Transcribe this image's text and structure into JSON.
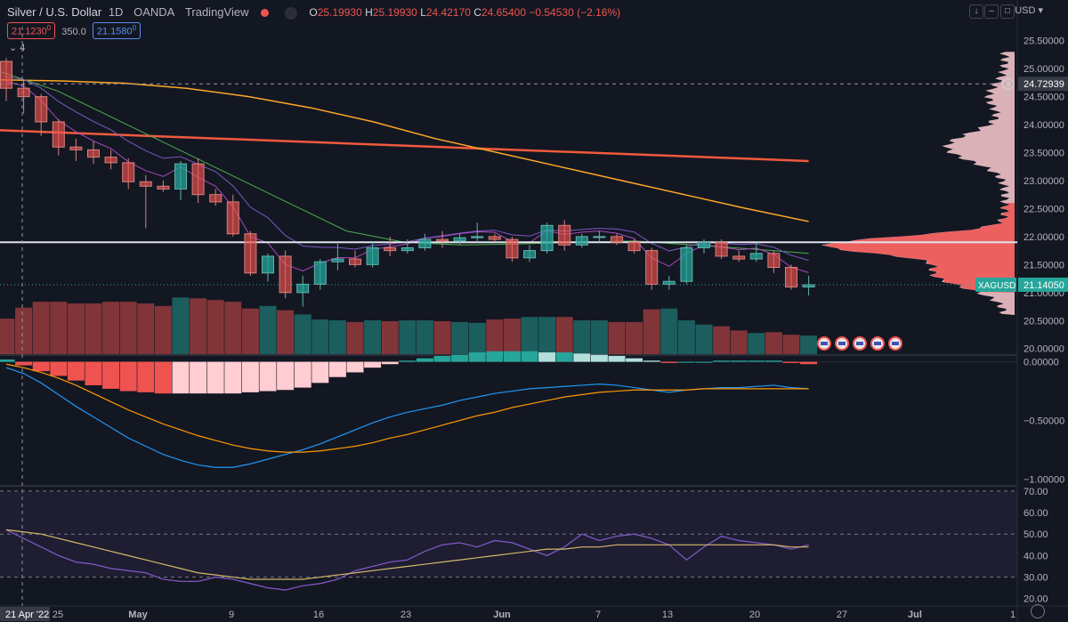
{
  "header": {
    "symbol": "Silver / U.S. Dollar",
    "interval": "1D",
    "broker": "OANDA",
    "platform": "TradingView",
    "o_label": "O",
    "o": "25.19930",
    "h_label": "H",
    "h": "25.19930",
    "l_label": "L",
    "l": "24.42170",
    "c_label": "C",
    "c": "24.65400",
    "change": "−0.54530 (−2.16%)",
    "bid": "21.1230",
    "bid_sup": "0",
    "spread": "350.0",
    "ask": "21.1580",
    "ask_sup": "0",
    "collapse": "4",
    "currency": "USD",
    "colors": {
      "up": "#26a69a",
      "down": "#ef5350",
      "bg": "#131722"
    }
  },
  "chart_data": {
    "type": "candlestick",
    "title": "Silver / U.S. Dollar, 1D, OANDA",
    "symbol_tag": "XAGUSD",
    "last_price": "21.14050",
    "crosshair_price": "24.72939",
    "crosshair_date": "21 Apr '22",
    "x_ticks": [
      "25",
      "May",
      "9",
      "16",
      "23",
      "Jun",
      "7",
      "13",
      "20",
      "27",
      "Jul",
      "1"
    ],
    "price_axis": [
      "25.50000",
      "25.00000",
      "24.50000",
      "24.00000",
      "23.50000",
      "23.00000",
      "22.50000",
      "22.00000",
      "21.50000",
      "21.00000",
      "20.50000",
      "20.00000"
    ],
    "price_range": [
      19.9,
      25.75
    ],
    "horizontal_line": 21.9,
    "candles": [
      {
        "o": 25.13,
        "h": 25.19,
        "l": 24.42,
        "c": 24.65
      },
      {
        "o": 24.65,
        "h": 24.8,
        "l": 24.2,
        "c": 24.5
      },
      {
        "o": 24.5,
        "h": 24.55,
        "l": 23.8,
        "c": 24.05
      },
      {
        "o": 24.05,
        "h": 24.1,
        "l": 23.45,
        "c": 23.6
      },
      {
        "o": 23.6,
        "h": 23.75,
        "l": 23.35,
        "c": 23.55
      },
      {
        "o": 23.55,
        "h": 23.7,
        "l": 23.3,
        "c": 23.42
      },
      {
        "o": 23.42,
        "h": 23.55,
        "l": 23.2,
        "c": 23.32
      },
      {
        "o": 23.32,
        "h": 23.4,
        "l": 22.85,
        "c": 22.98
      },
      {
        "o": 22.98,
        "h": 23.1,
        "l": 22.15,
        "c": 22.9
      },
      {
        "o": 22.9,
        "h": 23.0,
        "l": 22.8,
        "c": 22.85
      },
      {
        "o": 22.85,
        "h": 23.35,
        "l": 22.65,
        "c": 23.3
      },
      {
        "o": 23.3,
        "h": 23.4,
        "l": 22.6,
        "c": 22.75
      },
      {
        "o": 22.75,
        "h": 22.85,
        "l": 22.55,
        "c": 22.62
      },
      {
        "o": 22.62,
        "h": 22.75,
        "l": 22.0,
        "c": 22.05
      },
      {
        "o": 22.05,
        "h": 22.1,
        "l": 21.3,
        "c": 21.35
      },
      {
        "o": 21.35,
        "h": 21.7,
        "l": 21.2,
        "c": 21.65
      },
      {
        "o": 21.65,
        "h": 21.75,
        "l": 20.9,
        "c": 21.0
      },
      {
        "o": 21.0,
        "h": 21.3,
        "l": 20.75,
        "c": 21.15
      },
      {
        "o": 21.15,
        "h": 21.6,
        "l": 21.05,
        "c": 21.55
      },
      {
        "o": 21.55,
        "h": 21.9,
        "l": 21.4,
        "c": 21.6
      },
      {
        "o": 21.6,
        "h": 21.75,
        "l": 21.45,
        "c": 21.5
      },
      {
        "o": 21.5,
        "h": 21.9,
        "l": 21.45,
        "c": 21.8
      },
      {
        "o": 21.8,
        "h": 22.0,
        "l": 21.65,
        "c": 21.75
      },
      {
        "o": 21.75,
        "h": 21.95,
        "l": 21.7,
        "c": 21.8
      },
      {
        "o": 21.8,
        "h": 22.05,
        "l": 21.75,
        "c": 21.95
      },
      {
        "o": 21.95,
        "h": 22.1,
        "l": 21.8,
        "c": 21.92
      },
      {
        "o": 21.92,
        "h": 22.05,
        "l": 21.85,
        "c": 21.98
      },
      {
        "o": 21.98,
        "h": 22.25,
        "l": 21.9,
        "c": 22.0
      },
      {
        "o": 22.0,
        "h": 22.05,
        "l": 21.9,
        "c": 21.95
      },
      {
        "o": 21.95,
        "h": 22.0,
        "l": 21.55,
        "c": 21.62
      },
      {
        "o": 21.62,
        "h": 21.85,
        "l": 21.55,
        "c": 21.75
      },
      {
        "o": 21.75,
        "h": 22.25,
        "l": 21.7,
        "c": 22.2
      },
      {
        "o": 22.2,
        "h": 22.3,
        "l": 21.75,
        "c": 21.85
      },
      {
        "o": 21.85,
        "h": 22.05,
        "l": 21.8,
        "c": 22.0
      },
      {
        "o": 22.0,
        "h": 22.1,
        "l": 21.9,
        "c": 22.0
      },
      {
        "o": 22.0,
        "h": 22.05,
        "l": 21.85,
        "c": 21.9
      },
      {
        "o": 21.9,
        "h": 21.95,
        "l": 21.7,
        "c": 21.75
      },
      {
        "o": 21.75,
        "h": 21.8,
        "l": 21.05,
        "c": 21.15
      },
      {
        "o": 21.15,
        "h": 21.3,
        "l": 21.05,
        "c": 21.2
      },
      {
        "o": 21.2,
        "h": 21.85,
        "l": 21.15,
        "c": 21.8
      },
      {
        "o": 21.8,
        "h": 21.95,
        "l": 21.7,
        "c": 21.9
      },
      {
        "o": 21.9,
        "h": 21.95,
        "l": 21.6,
        "c": 21.65
      },
      {
        "o": 21.65,
        "h": 21.75,
        "l": 21.55,
        "c": 21.6
      },
      {
        "o": 21.6,
        "h": 21.9,
        "l": 21.55,
        "c": 21.7
      },
      {
        "o": 21.7,
        "h": 21.75,
        "l": 21.35,
        "c": 21.45
      },
      {
        "o": 21.45,
        "h": 21.5,
        "l": 21.05,
        "c": 21.1
      },
      {
        "o": 21.1,
        "h": 21.3,
        "l": 20.95,
        "c": 21.14
      }
    ],
    "volume": [
      42,
      55,
      62,
      62,
      60,
      60,
      62,
      62,
      60,
      57,
      67,
      66,
      64,
      62,
      54,
      57,
      52,
      47,
      41,
      40,
      38,
      40,
      39,
      40,
      40,
      39,
      38,
      37,
      41,
      42,
      44,
      44,
      44,
      40,
      40,
      38,
      38,
      53,
      54,
      40,
      35,
      33,
      28,
      25,
      26,
      23,
      22
    ],
    "moving_averages": [
      {
        "name": "MA 200",
        "color": "#f05a3c",
        "start": 23.9,
        "end": 23.35
      },
      {
        "name": "MA 100",
        "color": "#ffa726",
        "points": [
          24.8,
          24.78,
          24.74,
          24.65,
          24.5,
          24.3,
          24.05,
          23.75,
          23.5,
          23.25,
          23.0,
          22.75,
          22.5,
          22.27
        ]
      },
      {
        "name": "MA 50",
        "color": "#4caf50",
        "points": [
          24.95,
          24.6,
          24.1,
          23.6,
          23.1,
          22.6,
          22.1,
          21.9,
          21.85,
          21.87,
          21.9,
          21.92,
          21.85,
          21.78,
          21.7
        ]
      },
      {
        "name": "EMA fast",
        "color": "#ab47bc",
        "offset": 0.18
      },
      {
        "name": "EMA slow",
        "color": "#7e57c2",
        "offset": 0.35
      }
    ],
    "volume_profile_range": [
      20.6,
      25.3
    ],
    "event_icons": 5,
    "macd": {
      "axis": [
        "0.00000",
        "−0.50000",
        "−1.00000"
      ],
      "range": [
        -1.05,
        0.05
      ],
      "histogram": [
        0.02,
        -0.03,
        -0.08,
        -0.12,
        -0.16,
        -0.2,
        -0.23,
        -0.25,
        -0.26,
        -0.27,
        -0.27,
        -0.27,
        -0.27,
        -0.27,
        -0.26,
        -0.25,
        -0.24,
        -0.22,
        -0.18,
        -0.13,
        -0.09,
        -0.05,
        -0.02,
        0.01,
        0.03,
        0.05,
        0.06,
        0.08,
        0.09,
        0.09,
        0.09,
        0.08,
        0.08,
        0.07,
        0.06,
        0.05,
        0.03,
        0.01,
        -0.01,
        0.0,
        0.0,
        0.01,
        0.01,
        0.01,
        0.01,
        -0.01,
        -0.02
      ],
      "macd_line": [
        -0.05,
        -0.1,
        -0.18,
        -0.28,
        -0.38,
        -0.47,
        -0.56,
        -0.65,
        -0.72,
        -0.79,
        -0.84,
        -0.88,
        -0.9,
        -0.9,
        -0.87,
        -0.83,
        -0.79,
        -0.75,
        -0.7,
        -0.64,
        -0.58,
        -0.52,
        -0.47,
        -0.43,
        -0.4,
        -0.37,
        -0.33,
        -0.3,
        -0.27,
        -0.25,
        -0.23,
        -0.22,
        -0.21,
        -0.2,
        -0.19,
        -0.2,
        -0.22,
        -0.24,
        -0.26,
        -0.24,
        -0.23,
        -0.22,
        -0.22,
        -0.21,
        -0.2,
        -0.22,
        -0.23
      ],
      "signal_line": [
        -0.02,
        -0.05,
        -0.09,
        -0.14,
        -0.2,
        -0.27,
        -0.34,
        -0.41,
        -0.47,
        -0.53,
        -0.58,
        -0.63,
        -0.67,
        -0.71,
        -0.74,
        -0.76,
        -0.77,
        -0.77,
        -0.76,
        -0.74,
        -0.72,
        -0.69,
        -0.65,
        -0.62,
        -0.58,
        -0.54,
        -0.5,
        -0.46,
        -0.43,
        -0.39,
        -0.36,
        -0.33,
        -0.3,
        -0.28,
        -0.26,
        -0.25,
        -0.24,
        -0.24,
        -0.24,
        -0.24,
        -0.23,
        -0.23,
        -0.23,
        -0.23,
        -0.23,
        -0.23,
        -0.23
      ]
    },
    "rsi": {
      "axis": [
        "70.00",
        "60.00",
        "50.00",
        "40.00",
        "30.00",
        "20.00"
      ],
      "range": [
        17,
        72
      ],
      "band": [
        30,
        70
      ],
      "rsi_line": [
        52,
        48,
        44,
        40,
        37,
        36,
        34,
        33,
        32,
        29,
        28,
        28,
        30,
        29,
        27,
        25,
        24,
        26,
        27,
        29,
        33,
        35,
        37,
        38,
        42,
        45,
        46,
        44,
        47,
        46,
        43,
        40,
        44,
        50,
        47,
        49,
        50,
        48,
        45,
        38,
        44,
        49,
        47,
        46,
        45,
        43,
        45
      ],
      "rsi_ma": [
        52,
        51,
        50,
        48,
        46,
        44,
        42,
        40,
        38,
        36,
        34,
        32,
        31,
        30,
        29,
        29,
        29,
        29,
        30,
        31,
        32,
        33,
        34,
        35,
        36,
        37,
        38,
        39,
        40,
        41,
        42,
        43,
        43,
        44,
        44,
        45,
        45,
        45,
        45,
        45,
        45,
        45,
        45,
        45,
        45,
        44,
        44
      ]
    }
  }
}
